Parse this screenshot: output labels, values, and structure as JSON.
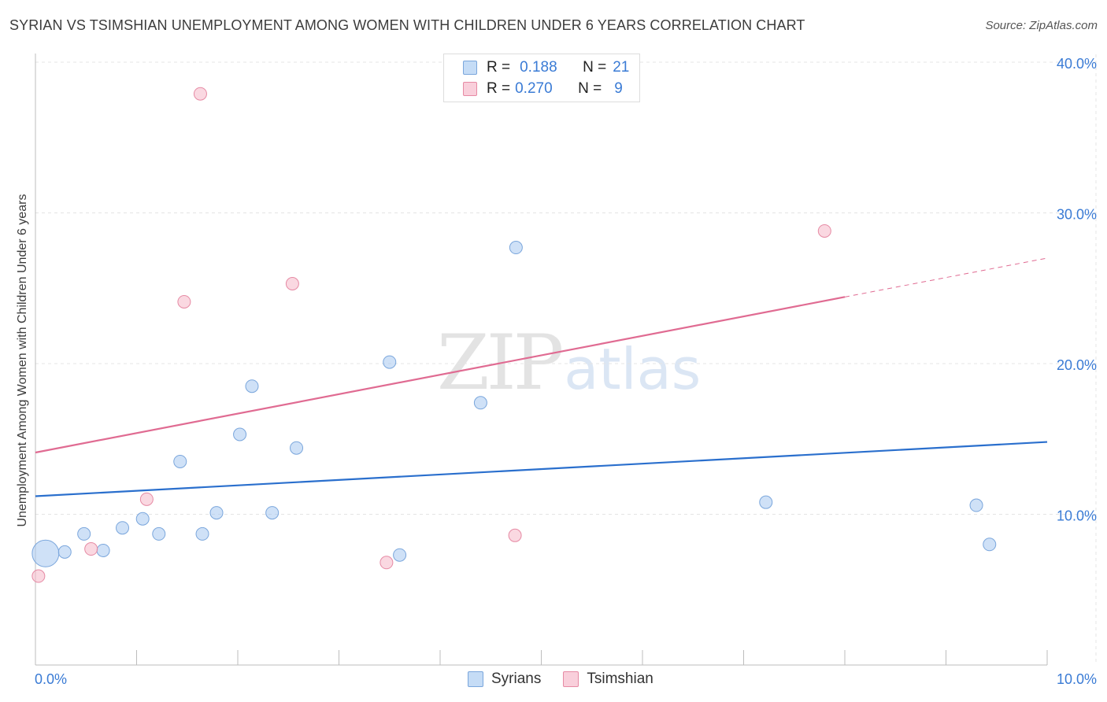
{
  "title": "SYRIAN VS TSIMSHIAN UNEMPLOYMENT AMONG WOMEN WITH CHILDREN UNDER 6 YEARS CORRELATION CHART",
  "source": "Source: ZipAtlas.com",
  "watermark": {
    "zip": "ZIP",
    "atlas": "atlas"
  },
  "legend_stats": [
    {
      "r_label": "R =",
      "r_value": "0.188",
      "n_label": "N =",
      "n_value": "21",
      "color": "#a8c8f0"
    },
    {
      "r_label": "R =",
      "r_value": "0.270",
      "n_label": "N =",
      "n_value": "9",
      "color": "#f5b8c8"
    }
  ],
  "chart_data": {
    "type": "scatter",
    "xlabel": "",
    "ylabel": "Unemployment Among Women with Children Under 6 years",
    "xlim": [
      0,
      10
    ],
    "ylim": [
      0,
      40
    ],
    "x_tick_labels": [
      "0.0%",
      "10.0%"
    ],
    "y_tick_labels": [
      "10.0%",
      "20.0%",
      "30.0%",
      "40.0%"
    ],
    "y_ticks": [
      10,
      20,
      30,
      40
    ],
    "grid": true,
    "legend_position": "bottom-center",
    "series": [
      {
        "name": "Syrians",
        "color": "#a8c8f0",
        "stroke": "#7aa6dc",
        "line_color": "#2a6fcd",
        "trend": {
          "x1": 0,
          "y1": 11.2,
          "x2": 10,
          "y2": 14.8,
          "dash_from": null
        },
        "points": [
          {
            "x": 0.1,
            "y": 7.4,
            "big": true
          },
          {
            "x": 0.29,
            "y": 7.5
          },
          {
            "x": 0.48,
            "y": 8.7
          },
          {
            "x": 0.67,
            "y": 7.6
          },
          {
            "x": 0.86,
            "y": 9.1
          },
          {
            "x": 1.06,
            "y": 9.7
          },
          {
            "x": 1.22,
            "y": 8.7
          },
          {
            "x": 1.43,
            "y": 13.5
          },
          {
            "x": 1.65,
            "y": 8.7
          },
          {
            "x": 1.79,
            "y": 10.1
          },
          {
            "x": 2.02,
            "y": 15.3
          },
          {
            "x": 2.14,
            "y": 18.5
          },
          {
            "x": 2.34,
            "y": 10.1
          },
          {
            "x": 2.58,
            "y": 14.4
          },
          {
            "x": 3.5,
            "y": 20.1
          },
          {
            "x": 3.6,
            "y": 7.3
          },
          {
            "x": 4.4,
            "y": 17.4
          },
          {
            "x": 4.75,
            "y": 27.7
          },
          {
            "x": 7.22,
            "y": 10.8
          },
          {
            "x": 9.3,
            "y": 10.6
          },
          {
            "x": 9.43,
            "y": 8.0
          }
        ]
      },
      {
        "name": "Tsimshian",
        "color": "#f5b8c8",
        "stroke": "#e68aa4",
        "line_color": "#e06b92",
        "trend": {
          "x1": 0,
          "y1": 14.1,
          "x2": 10,
          "y2": 27.0,
          "dash_from": 8.0
        },
        "points": [
          {
            "x": 0.03,
            "y": 5.9
          },
          {
            "x": 0.55,
            "y": 7.7
          },
          {
            "x": 1.1,
            "y": 11.0
          },
          {
            "x": 1.47,
            "y": 24.1
          },
          {
            "x": 1.63,
            "y": 37.9
          },
          {
            "x": 2.54,
            "y": 25.3
          },
          {
            "x": 3.47,
            "y": 6.8
          },
          {
            "x": 4.74,
            "y": 8.6
          },
          {
            "x": 7.8,
            "y": 28.8
          }
        ]
      }
    ]
  }
}
